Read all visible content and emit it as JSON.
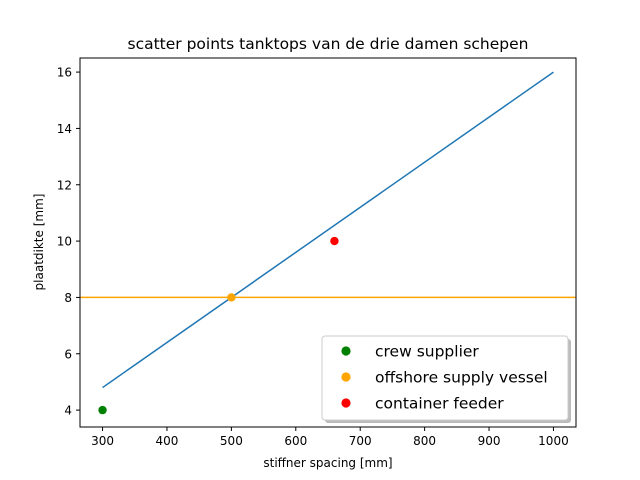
{
  "chart_data": {
    "type": "scatter",
    "title": "scatter points tanktops van de drie damen schepen",
    "xlabel": "stiffner spacing [mm]",
    "ylabel": "plaatdikte [mm]",
    "xlim": [
      265,
      1035
    ],
    "ylim": [
      3.4,
      16.5
    ],
    "xticks": [
      "300",
      "400",
      "500",
      "600",
      "700",
      "800",
      "900",
      "1000"
    ],
    "yticks": [
      "4",
      "6",
      "8",
      "10",
      "12",
      "14",
      "16"
    ],
    "grid": false,
    "legend_position": "lower-right",
    "line": {
      "x": [
        300,
        1000
      ],
      "y": [
        4.8,
        16.0
      ],
      "color": "#1f77b4"
    },
    "hline": {
      "y": 8,
      "color": "#ffa500"
    },
    "series": [
      {
        "name": "crew supplier",
        "x": [
          300
        ],
        "y": [
          4
        ],
        "color": "#008000"
      },
      {
        "name": "offshore supply vessel",
        "x": [
          500
        ],
        "y": [
          8
        ],
        "color": "#ffa500"
      },
      {
        "name": "container feeder",
        "x": [
          660
        ],
        "y": [
          10
        ],
        "color": "#ff0000"
      }
    ]
  }
}
